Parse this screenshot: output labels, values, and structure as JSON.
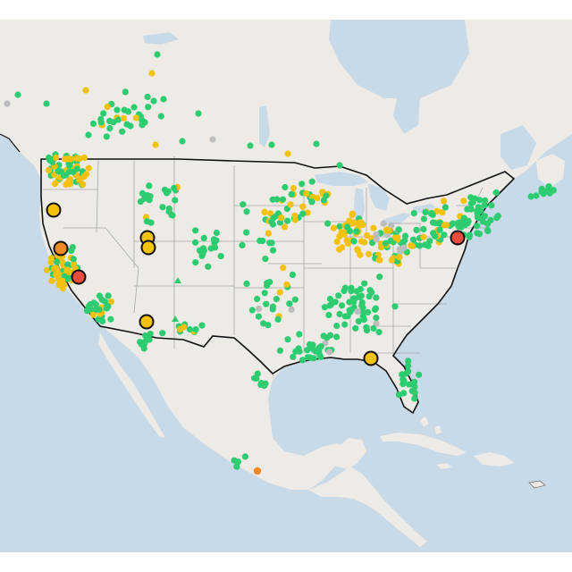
{
  "map": {
    "type": "air-quality-monitor-map",
    "region": "North America",
    "colors": {
      "ocean": "#c8d9e8",
      "land": "#eeeae6",
      "land_relief": "#e2ddd8",
      "lakes": "#c8d9e8",
      "state_border": "#a7a7a7",
      "country_border": "#111111",
      "good": "#2ecc71",
      "moderate": "#f4c20d",
      "unhealthy_sensitive": "#f08a24",
      "unhealthy": "#e74c3c",
      "no_data": "#bdbdbd"
    },
    "legend": [],
    "highlighted_stations": [
      {
        "category": "moderate"
      },
      {
        "category": "unhealthy_sensitive"
      },
      {
        "category": "unhealthy"
      },
      {
        "category": "moderate"
      },
      {
        "category": "moderate"
      },
      {
        "category": "moderate"
      },
      {
        "category": "unhealthy"
      },
      {
        "category": "moderate"
      }
    ]
  }
}
